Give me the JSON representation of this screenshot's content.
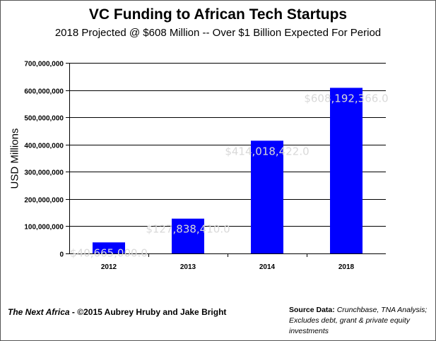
{
  "chart_data": {
    "type": "bar",
    "title": "VC Funding to African Tech Startups",
    "subtitle": "2018 Projected @ $608 Million  -- Over $1 Billion Expected For Period",
    "xlabel": "",
    "ylabel": "USD Millions",
    "categories": [
      "2012",
      "2013",
      "2014",
      "2018"
    ],
    "values": [
      40665000,
      127838410,
      414018422,
      608192366
    ],
    "data_labels": [
      "$40,665,000.0",
      "$127,838,410.0",
      "$414,018,422.0",
      "$608,192,366.0"
    ],
    "ylim": [
      0,
      700000000
    ],
    "yticks": [
      0,
      100000000,
      200000000,
      300000000,
      400000000,
      500000000,
      600000000,
      700000000
    ],
    "ytick_labels": [
      "0",
      "100,000,000",
      "200,000,000",
      "300,000,000",
      "400,000,000",
      "500,000,000",
      "600,000,000",
      "700,000,000"
    ],
    "grid": true,
    "legend": "none",
    "bar_color": "#0000ff",
    "label_color": "#d9d9d9"
  },
  "footer": {
    "credit_italic": "The Next Africa",
    "credit_rest": " - ©2015 Aubrey Hruby and Jake Bright",
    "source_label": "Source Data:",
    "source_text": " Crunchbase, TNA Analysis; Excludes debt, grant & private equity investments"
  }
}
